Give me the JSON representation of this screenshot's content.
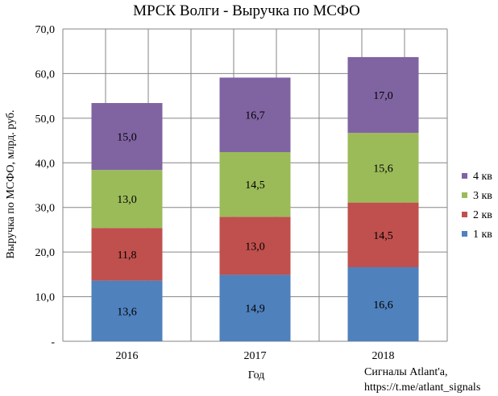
{
  "chart_data": {
    "type": "bar",
    "stacked": true,
    "title": "МРСК Волги - Выручка по МСФО",
    "xlabel": "Год",
    "ylabel": "Выручка по МСФО, млрд. руб.",
    "categories": [
      "2016",
      "2017",
      "2018"
    ],
    "ylim": [
      0,
      70
    ],
    "yticks": [
      {
        "value": 0,
        "label": "-"
      },
      {
        "value": 10,
        "label": "10,0"
      },
      {
        "value": 20,
        "label": "20,0"
      },
      {
        "value": 30,
        "label": "30,0"
      },
      {
        "value": 40,
        "label": "40,0"
      },
      {
        "value": 50,
        "label": "50,0"
      },
      {
        "value": 60,
        "label": "60,0"
      },
      {
        "value": 70,
        "label": "70,0"
      }
    ],
    "grid": true,
    "legend_position": "right",
    "series": [
      {
        "name": "1 кв",
        "color": "#4f81bd",
        "values": [
          13.6,
          14.9,
          16.6
        ],
        "labels": [
          "13,6",
          "14,9",
          "16,6"
        ]
      },
      {
        "name": "2 кв",
        "color": "#c0504d",
        "values": [
          11.8,
          13.0,
          14.5
        ],
        "labels": [
          "11,8",
          "13,0",
          "14,5"
        ]
      },
      {
        "name": "3 кв",
        "color": "#9bbb59",
        "values": [
          13.0,
          14.5,
          15.6
        ],
        "labels": [
          "13,0",
          "14,5",
          "15,6"
        ]
      },
      {
        "name": "4 кв",
        "color": "#8064a2",
        "values": [
          15.0,
          16.7,
          17.0
        ],
        "labels": [
          "15,0",
          "16,7",
          "17,0"
        ]
      }
    ]
  },
  "footer": {
    "line1": "Сигналы Atlant'a,",
    "line2": "https://t.me/atlant_signals"
  }
}
